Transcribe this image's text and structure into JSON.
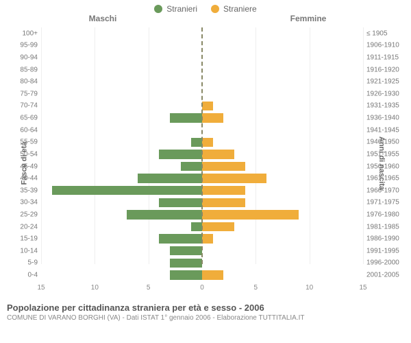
{
  "legend": {
    "male": {
      "label": "Stranieri",
      "color": "#6a9a5b"
    },
    "female": {
      "label": "Straniere",
      "color": "#f0ad3b"
    }
  },
  "headers": {
    "left": "Maschi",
    "right": "Femmine"
  },
  "axes": {
    "left_title": "Fasce di età",
    "right_title": "Anni di nascita",
    "xlim": 15,
    "xticks_left": [
      15,
      10,
      5,
      0
    ],
    "xticks_right": [
      0,
      5,
      10,
      15
    ]
  },
  "chart": {
    "type": "population-pyramid",
    "background_color": "#ffffff",
    "grid_color": "#eeeeee",
    "center_line_color": "#888866",
    "label_color": "#777777",
    "label_fontsize": 10,
    "rows": [
      {
        "age": "100+",
        "birth": "≤ 1905",
        "m": 0,
        "f": 0
      },
      {
        "age": "95-99",
        "birth": "1906-1910",
        "m": 0,
        "f": 0
      },
      {
        "age": "90-94",
        "birth": "1911-1915",
        "m": 0,
        "f": 0
      },
      {
        "age": "85-89",
        "birth": "1916-1920",
        "m": 0,
        "f": 0
      },
      {
        "age": "80-84",
        "birth": "1921-1925",
        "m": 0,
        "f": 0
      },
      {
        "age": "75-79",
        "birth": "1926-1930",
        "m": 0,
        "f": 0
      },
      {
        "age": "70-74",
        "birth": "1931-1935",
        "m": 0,
        "f": 1
      },
      {
        "age": "65-69",
        "birth": "1936-1940",
        "m": 3,
        "f": 2
      },
      {
        "age": "60-64",
        "birth": "1941-1945",
        "m": 0,
        "f": 0
      },
      {
        "age": "55-59",
        "birth": "1946-1950",
        "m": 1,
        "f": 1
      },
      {
        "age": "50-54",
        "birth": "1951-1955",
        "m": 4,
        "f": 3
      },
      {
        "age": "45-49",
        "birth": "1956-1960",
        "m": 2,
        "f": 4
      },
      {
        "age": "40-44",
        "birth": "1961-1965",
        "m": 6,
        "f": 6
      },
      {
        "age": "35-39",
        "birth": "1966-1970",
        "m": 14,
        "f": 4
      },
      {
        "age": "30-34",
        "birth": "1971-1975",
        "m": 4,
        "f": 4
      },
      {
        "age": "25-29",
        "birth": "1976-1980",
        "m": 7,
        "f": 9
      },
      {
        "age": "20-24",
        "birth": "1981-1985",
        "m": 1,
        "f": 3
      },
      {
        "age": "15-19",
        "birth": "1986-1990",
        "m": 4,
        "f": 1
      },
      {
        "age": "10-14",
        "birth": "1991-1995",
        "m": 3,
        "f": 0
      },
      {
        "age": "5-9",
        "birth": "1996-2000",
        "m": 3,
        "f": 0
      },
      {
        "age": "0-4",
        "birth": "2001-2005",
        "m": 3,
        "f": 2
      }
    ]
  },
  "footer": {
    "title": "Popolazione per cittadinanza straniera per età e sesso - 2006",
    "subtitle": "COMUNE DI VARANO BORGHI (VA) - Dati ISTAT 1° gennaio 2006 - Elaborazione TUTTITALIA.IT"
  }
}
